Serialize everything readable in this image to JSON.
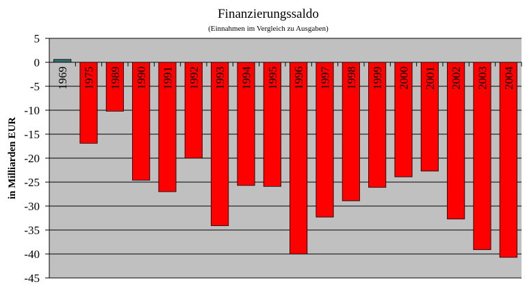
{
  "chart_data": {
    "type": "bar",
    "title": "Finanzierungssaldo",
    "subtitle": "(Einnahmen im Vergleich zu Ausgaben)",
    "xlabel": "",
    "ylabel": "in Milliarden EUR",
    "ylim": [
      -45,
      5
    ],
    "yticks": [
      5,
      0,
      -5,
      -10,
      -15,
      -20,
      -25,
      -30,
      -35,
      -40,
      -45
    ],
    "grid": true,
    "legend": "none",
    "categories": [
      "1969",
      "1975",
      "1989",
      "1990",
      "1991",
      "1992",
      "1993",
      "1994",
      "1995",
      "1996",
      "1997",
      "1998",
      "1999",
      "2000",
      "2001",
      "2002",
      "2003",
      "2004"
    ],
    "values": [
      0.6,
      -16.9,
      -10.2,
      -24.6,
      -27.0,
      -20.0,
      -34.1,
      -25.7,
      -25.9,
      -40.0,
      -32.3,
      -28.9,
      -26.1,
      -23.9,
      -22.7,
      -32.7,
      -39.1,
      -40.7
    ],
    "colors": {
      "positive": "#2f6f6f",
      "negative": "#ff0000",
      "plot_background": "#c0c0c0"
    }
  }
}
